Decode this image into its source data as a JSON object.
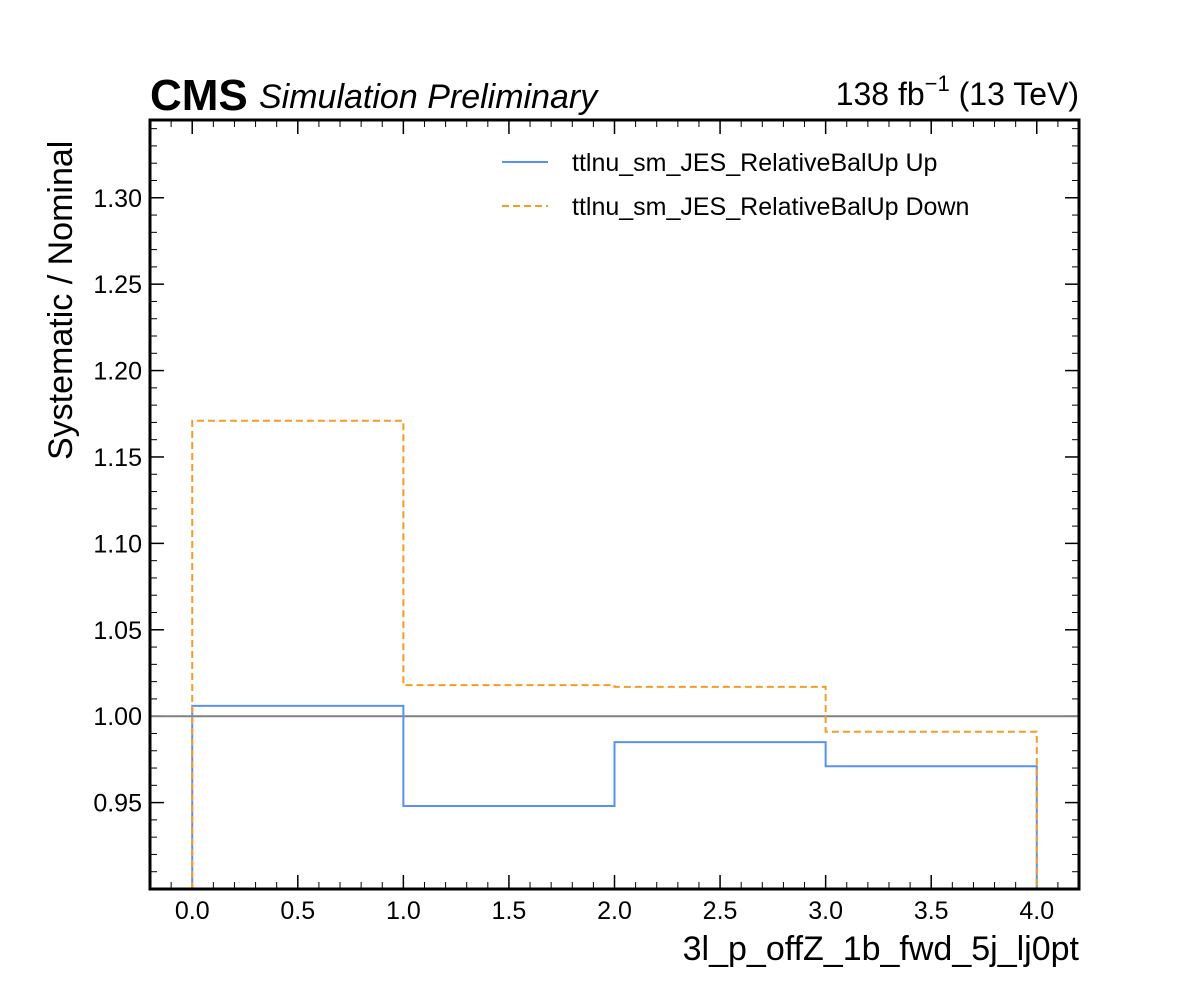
{
  "header": {
    "experiment": "CMS",
    "status": "Simulation Preliminary",
    "lumi_value": "138 fb",
    "lumi_exponent": "−1",
    "lumi_energy": " (13 TeV)"
  },
  "chart_data": {
    "type": "line",
    "drawstyle": "steps",
    "xlabel": "3l_p_offZ_1b_fwd_5j_lj0pt",
    "ylabel": "Systematic / Nominal",
    "xlim": [
      -0.2,
      4.2
    ],
    "ylim": [
      0.9,
      1.345
    ],
    "x_ticks": [
      0.0,
      0.5,
      1.0,
      1.5,
      2.0,
      2.5,
      3.0,
      3.5,
      4.0
    ],
    "x_tick_labels": [
      "0.0",
      "0.5",
      "1.0",
      "1.5",
      "2.0",
      "2.5",
      "3.0",
      "3.5",
      "4.0"
    ],
    "y_ticks": [
      0.95,
      1.0,
      1.05,
      1.1,
      1.15,
      1.2,
      1.25,
      1.3
    ],
    "y_tick_labels": [
      "0.95",
      "1.00",
      "1.05",
      "1.10",
      "1.15",
      "1.20",
      "1.25",
      "1.30"
    ],
    "bin_edges": [
      0,
      1,
      2,
      3,
      4
    ],
    "reference_line": {
      "y": 1.0,
      "color": "#808080"
    },
    "legend_position": "top-right",
    "grid": false,
    "series": [
      {
        "name": "ttlnu_sm_JES_RelativeBalUp Up",
        "values": [
          1.006,
          0.948,
          0.985,
          0.971
        ],
        "color": "#5790fc",
        "linestyle": "solid"
      },
      {
        "name": "ttlnu_sm_JES_RelativeBalUp Down",
        "values": [
          1.171,
          1.018,
          1.017,
          0.991
        ],
        "color": "#f89c20",
        "linestyle": "dashed"
      }
    ]
  }
}
